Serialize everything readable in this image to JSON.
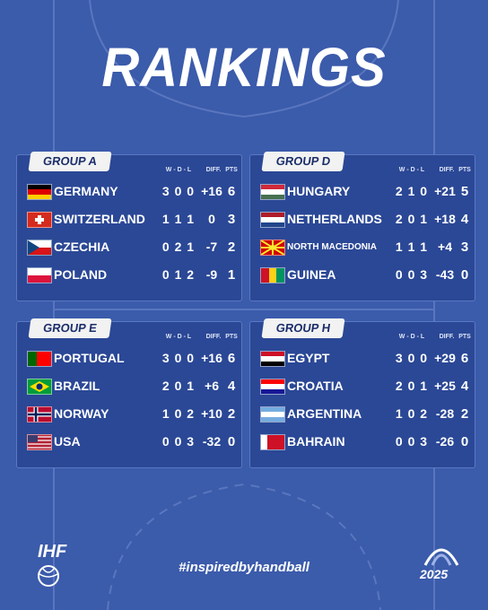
{
  "title": "RANKINGS",
  "columns": [
    "W - D - L",
    "DIFF.",
    "PTS"
  ],
  "groups": [
    {
      "name": "GROUP A",
      "rows": [
        {
          "team": "GERMANY",
          "wdl": "3 0 0",
          "diff": "+16",
          "pts": 6
        },
        {
          "team": "SWITZERLAND",
          "wdl": "1 1 1",
          "diff": "0",
          "pts": 3
        },
        {
          "team": "CZECHIA",
          "wdl": "0 2 1",
          "diff": "-7",
          "pts": 2
        },
        {
          "team": "POLAND",
          "wdl": "0 1 2",
          "diff": "-9",
          "pts": 1
        }
      ]
    },
    {
      "name": "GROUP D",
      "rows": [
        {
          "team": "HUNGARY",
          "wdl": "2 1 0",
          "diff": "+21",
          "pts": 5
        },
        {
          "team": "NETHERLANDS",
          "wdl": "2 0 1",
          "diff": "+18",
          "pts": 4
        },
        {
          "team": "NORTH MACEDONIA",
          "wdl": "1 1 1",
          "diff": "+4",
          "pts": 3
        },
        {
          "team": "GUINEA",
          "wdl": "0 0 3",
          "diff": "-43",
          "pts": 0
        }
      ]
    },
    {
      "name": "GROUP E",
      "rows": [
        {
          "team": "PORTUGAL",
          "wdl": "3 0 0",
          "diff": "+16",
          "pts": 6
        },
        {
          "team": "BRAZIL",
          "wdl": "2 0 1",
          "diff": "+6",
          "pts": 4
        },
        {
          "team": "NORWAY",
          "wdl": "1 0 2",
          "diff": "+10",
          "pts": 2
        },
        {
          "team": "USA",
          "wdl": "0 0 3",
          "diff": "-32",
          "pts": 0
        }
      ]
    },
    {
      "name": "GROUP H",
      "rows": [
        {
          "team": "EGYPT",
          "wdl": "3 0 0",
          "diff": "+29",
          "pts": 6
        },
        {
          "team": "CROATIA",
          "wdl": "2 0 1",
          "diff": "+25",
          "pts": 4
        },
        {
          "team": "ARGENTINA",
          "wdl": "1 0 2",
          "diff": "-28",
          "pts": 2
        },
        {
          "team": "BAHRAIN",
          "wdl": "0 0 3",
          "diff": "-26",
          "pts": 0
        }
      ]
    }
  ],
  "footer": {
    "hashtag": "#inspiredbyhandball",
    "left_logo": "IHF",
    "right_logo": "2025"
  }
}
